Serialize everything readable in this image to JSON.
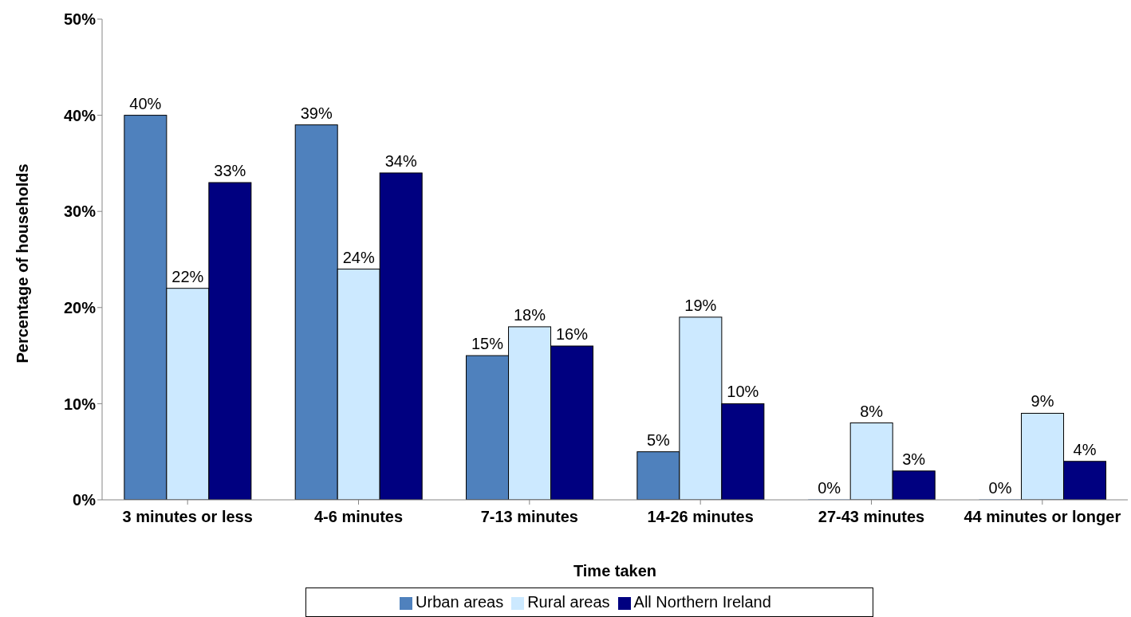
{
  "chart_data": {
    "type": "bar",
    "xlabel": "Time taken",
    "ylabel": "Percentage of households",
    "categories": [
      "3 minutes or less",
      "4-6 minutes",
      "7-13 minutes",
      "14-26 minutes",
      "27-43 minutes",
      "44 minutes or longer"
    ],
    "series": [
      {
        "name": "Urban areas",
        "color": "#4f81bd",
        "values": [
          40,
          39,
          15,
          5,
          0,
          0
        ],
        "value_labels": [
          "40%",
          "39%",
          "15%",
          "5%",
          "0%",
          "0%"
        ]
      },
      {
        "name": "Rural areas",
        "color": "#cce9ff",
        "values": [
          22,
          24,
          18,
          19,
          8,
          9
        ],
        "value_labels": [
          "22%",
          "24%",
          "18%",
          "19%",
          "8%",
          "9%"
        ]
      },
      {
        "name": "All Northern Ireland",
        "color": "#000080",
        "values": [
          33,
          34,
          16,
          10,
          3,
          4
        ],
        "value_labels": [
          "33%",
          "34%",
          "16%",
          "10%",
          "3%",
          "4%"
        ]
      }
    ],
    "ylim": [
      0,
      50
    ],
    "yticks": [
      {
        "value": 0,
        "label": "0%"
      },
      {
        "value": 10,
        "label": "10%"
      },
      {
        "value": 20,
        "label": "20%"
      },
      {
        "value": 30,
        "label": "30%"
      },
      {
        "value": 40,
        "label": "40%"
      },
      {
        "value": 50,
        "label": "50%"
      }
    ],
    "grid": false,
    "legend": "bottom"
  }
}
